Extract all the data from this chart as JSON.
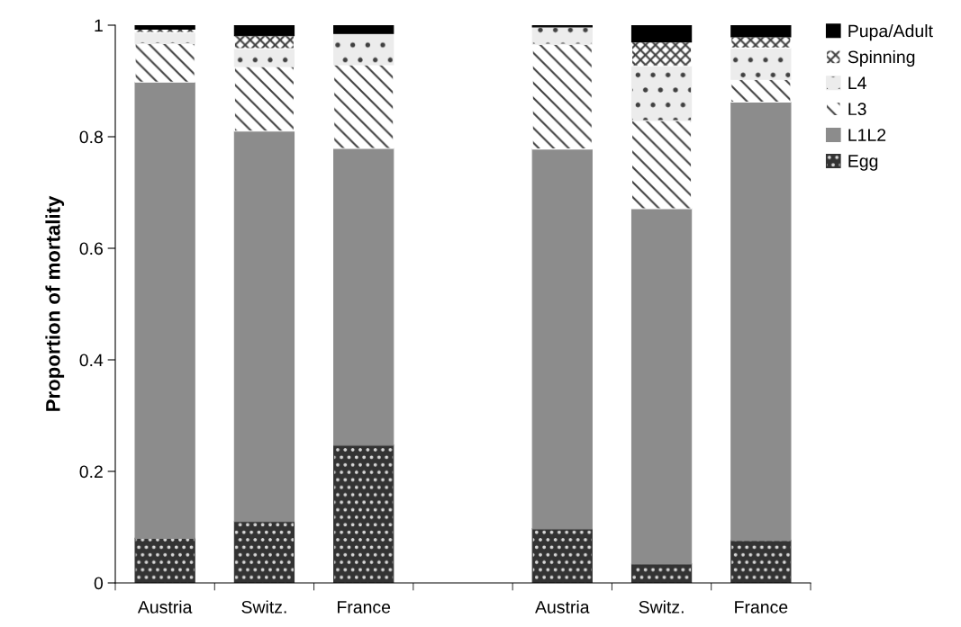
{
  "chart_data": {
    "type": "bar",
    "stacked": true,
    "ylabel": "Proportion of mortality",
    "categories": [
      "Austria",
      "Switz.",
      "France",
      null,
      "Austria",
      "Switz.",
      "France"
    ],
    "series": [
      {
        "name": "Egg",
        "color": "#333333",
        "values": [
          0.08,
          0.11,
          0.247,
          null,
          0.097,
          0.034,
          0.076
        ]
      },
      {
        "name": "L1L2",
        "color": "#8c8c8c",
        "values": [
          0.818,
          0.7,
          0.532,
          null,
          0.681,
          0.637,
          0.786
        ]
      },
      {
        "name": "L3",
        "color": "#ffffff",
        "values": [
          0.069,
          0.116,
          0.15,
          null,
          0.188,
          0.158,
          0.041
        ]
      },
      {
        "name": "L4",
        "color": "#ececec",
        "values": [
          0.02,
          0.032,
          0.056,
          null,
          0.031,
          0.098,
          0.056
        ]
      },
      {
        "name": "Spinning",
        "color": "#ffffff",
        "values": [
          0.006,
          0.023,
          0,
          null,
          0,
          0.043,
          0.02
        ]
      },
      {
        "name": "Pupa/Adult",
        "color": "#000000",
        "values": [
          0.007,
          0.018,
          0.015,
          null,
          0.003,
          0.03,
          0.021
        ]
      }
    ],
    "ylim": [
      0,
      1
    ],
    "yticks": [
      0,
      0.2,
      0.4,
      0.6,
      0.8,
      1
    ],
    "grid": false,
    "legend": "right"
  }
}
